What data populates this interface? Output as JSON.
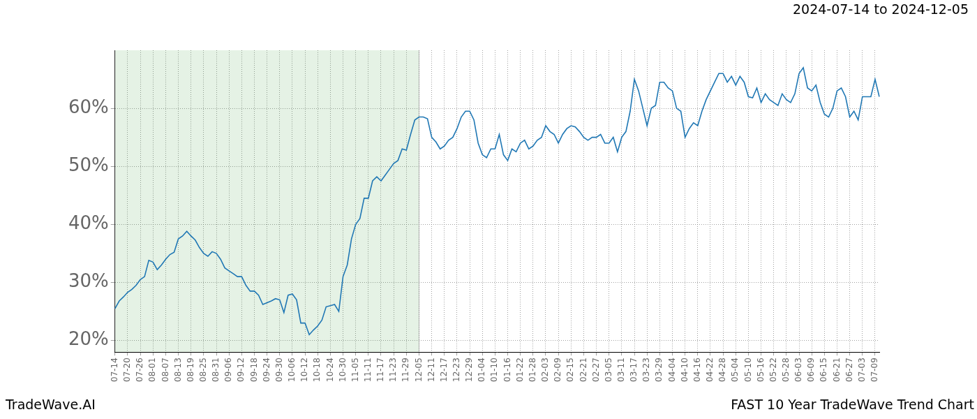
{
  "chart_data": {
    "type": "line",
    "title": "2024-07-14 to 2024-12-05",
    "footer_left": "TradeWave.AI",
    "footer_right": "FAST 10 Year TradeWave Trend Chart",
    "categories": [
      "07-14",
      null,
      null,
      "07-20",
      null,
      null,
      "07-26",
      null,
      null,
      "08-01",
      null,
      null,
      "08-07",
      null,
      null,
      "08-13",
      null,
      null,
      "08-19",
      null,
      null,
      "08-25",
      null,
      null,
      "08-31",
      null,
      null,
      "09-06",
      null,
      null,
      "09-12",
      null,
      null,
      "09-18",
      null,
      null,
      "09-24",
      null,
      null,
      "09-30",
      null,
      null,
      "10-06",
      null,
      null,
      "10-12",
      null,
      null,
      "10-18",
      null,
      null,
      "10-24",
      null,
      null,
      "10-30",
      null,
      null,
      "11-05",
      null,
      null,
      "11-11",
      null,
      null,
      "11-17",
      null,
      null,
      "11-23",
      null,
      null,
      "11-29",
      null,
      null,
      "12-05",
      null,
      null,
      "12-11",
      null,
      null,
      "12-17",
      null,
      null,
      "12-23",
      null,
      null,
      "12-29",
      null,
      null,
      "01-04",
      null,
      null,
      "01-10",
      null,
      null,
      "01-16",
      null,
      null,
      "01-22",
      null,
      null,
      "01-28",
      null,
      null,
      "02-03",
      null,
      null,
      "02-09",
      null,
      null,
      "02-15",
      null,
      null,
      "02-21",
      null,
      null,
      "02-27",
      null,
      null,
      "03-05",
      null,
      null,
      "03-11",
      null,
      null,
      "03-17",
      null,
      null,
      "03-23",
      null,
      null,
      "03-29",
      null,
      null,
      "04-04",
      null,
      null,
      "04-10",
      null,
      null,
      "04-16",
      null,
      null,
      "04-22",
      null,
      null,
      "04-28",
      null,
      null,
      "05-04",
      null,
      null,
      "05-10",
      null,
      null,
      "05-16",
      null,
      null,
      "05-22",
      null,
      null,
      "05-28",
      null,
      null,
      "06-03",
      null,
      null,
      "06-09",
      null,
      null,
      "06-15",
      null,
      null,
      "06-21",
      null,
      null,
      "06-27",
      null,
      null,
      "07-03",
      null,
      null,
      "07-09",
      null
    ],
    "values": [
      25.5,
      26.8,
      27.5,
      28.3,
      28.8,
      29.5,
      30.5,
      31,
      33.8,
      33.5,
      32.2,
      33,
      34,
      34.8,
      35.2,
      37.5,
      38,
      38.8,
      38,
      37.3,
      36,
      35,
      34.5,
      35.3,
      35,
      34,
      32.5,
      32,
      31.5,
      31,
      31,
      29.5,
      28.5,
      28.5,
      27.8,
      26.2,
      26.5,
      26.8,
      27.2,
      27,
      24.8,
      27.8,
      28,
      27,
      23,
      23,
      21,
      21.8,
      22.5,
      23.5,
      25.8,
      26,
      26.2,
      25,
      31,
      33,
      37.5,
      40,
      41,
      44.5,
      44.5,
      47.5,
      48.2,
      47.5,
      48.5,
      49.5,
      50.5,
      51,
      53,
      52.8,
      55.5,
      58,
      58.5,
      58.5,
      58.2,
      55,
      54.2,
      53,
      53.5,
      54.5,
      55,
      56.5,
      58.5,
      59.5,
      59.5,
      58,
      54,
      52,
      51.5,
      53,
      53,
      55.5,
      52,
      51,
      53,
      52.5,
      54,
      54.5,
      53,
      53.5,
      54.5,
      55,
      57,
      56,
      55.5,
      54,
      55.5,
      56.5,
      57,
      56.8,
      56,
      55,
      54.5,
      55,
      55,
      55.5,
      54,
      54,
      55,
      52.5,
      55,
      56,
      59.5,
      65,
      63,
      60,
      57,
      60,
      60.5,
      64.5,
      64.5,
      63.5,
      63,
      60,
      59.5,
      55,
      56.5,
      57.5,
      57,
      59.5,
      61.5,
      63,
      64.5,
      66,
      66,
      64.5,
      65.5,
      64,
      65.5,
      64.5,
      62,
      61.8,
      63.5,
      61,
      62.5,
      61.5,
      61,
      60.5,
      62.5,
      61.5,
      61,
      62.5,
      66,
      67,
      63.5,
      63,
      64,
      61,
      59,
      58.5,
      60,
      63,
      63.5,
      62,
      58.5,
      59.5,
      58,
      62,
      62,
      62,
      65,
      62
    ],
    "color": "#1f77b4",
    "highlight": {
      "start": "07-14",
      "end": "12-05"
    },
    "ylim": [
      18,
      70
    ],
    "yticks": [
      {
        "value": 20,
        "label": "20%"
      },
      {
        "value": 30,
        "label": "30%"
      },
      {
        "value": 40,
        "label": "40%"
      },
      {
        "value": 50,
        "label": "50%"
      },
      {
        "value": 60,
        "label": "60%"
      }
    ],
    "grid": true
  }
}
